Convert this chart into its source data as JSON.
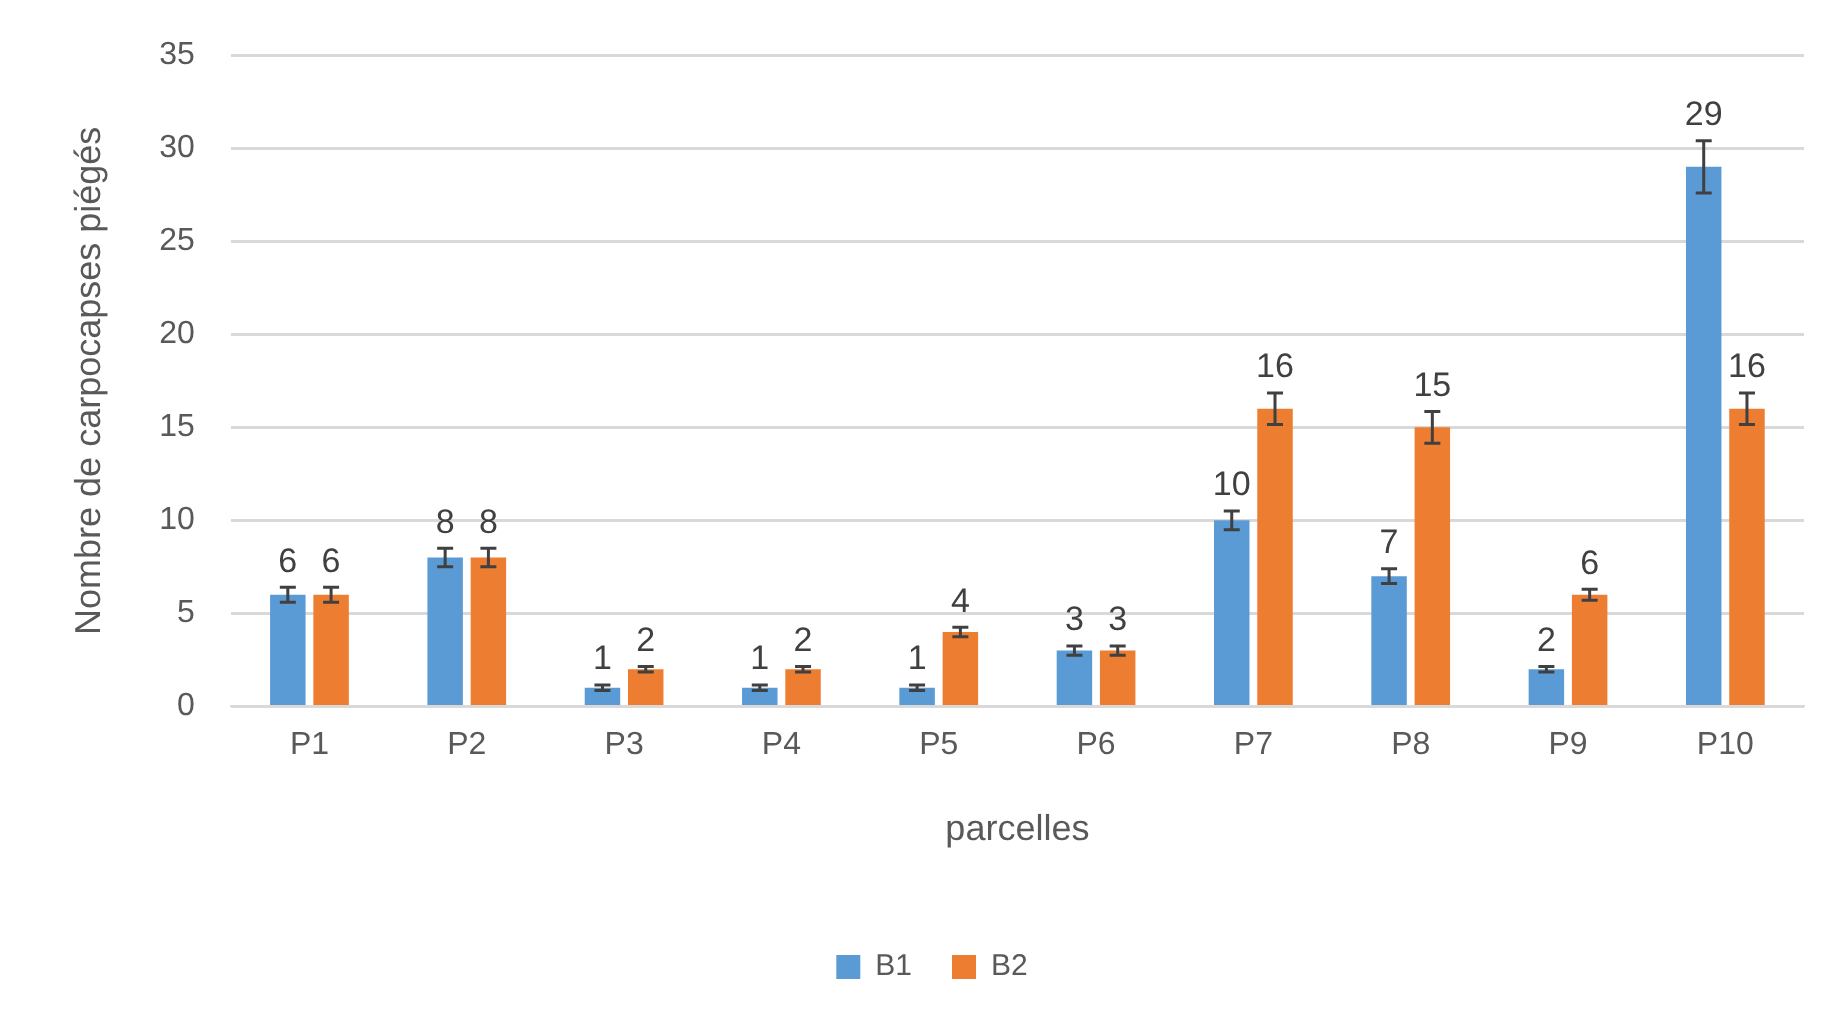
{
  "chart_data": {
    "type": "bar",
    "xlabel": "parcelles",
    "ylabel": "Nombre de carpocapses piégés",
    "categories": [
      "P1",
      "P2",
      "P3",
      "P4",
      "P5",
      "P6",
      "P7",
      "P8",
      "P9",
      "P10"
    ],
    "series": [
      {
        "name": "B1",
        "color": "#5b9bd5",
        "values": [
          6,
          8,
          1,
          1,
          1,
          3,
          10,
          7,
          2,
          29
        ],
        "errors": [
          0.4,
          0.5,
          0.15,
          0.15,
          0.15,
          0.25,
          0.5,
          0.4,
          0.15,
          1.4
        ]
      },
      {
        "name": "B2",
        "color": "#ed7d31",
        "values": [
          6,
          8,
          2,
          2,
          4,
          3,
          16,
          15,
          6,
          16
        ],
        "errors": [
          0.4,
          0.5,
          0.15,
          0.15,
          0.25,
          0.25,
          0.85,
          0.85,
          0.3,
          0.85
        ]
      }
    ],
    "ylim": [
      0,
      35
    ],
    "yticks": [
      0,
      5,
      10,
      15,
      20,
      25,
      30,
      35
    ],
    "grid": "y",
    "legend": "bottom",
    "data_labels": true
  }
}
